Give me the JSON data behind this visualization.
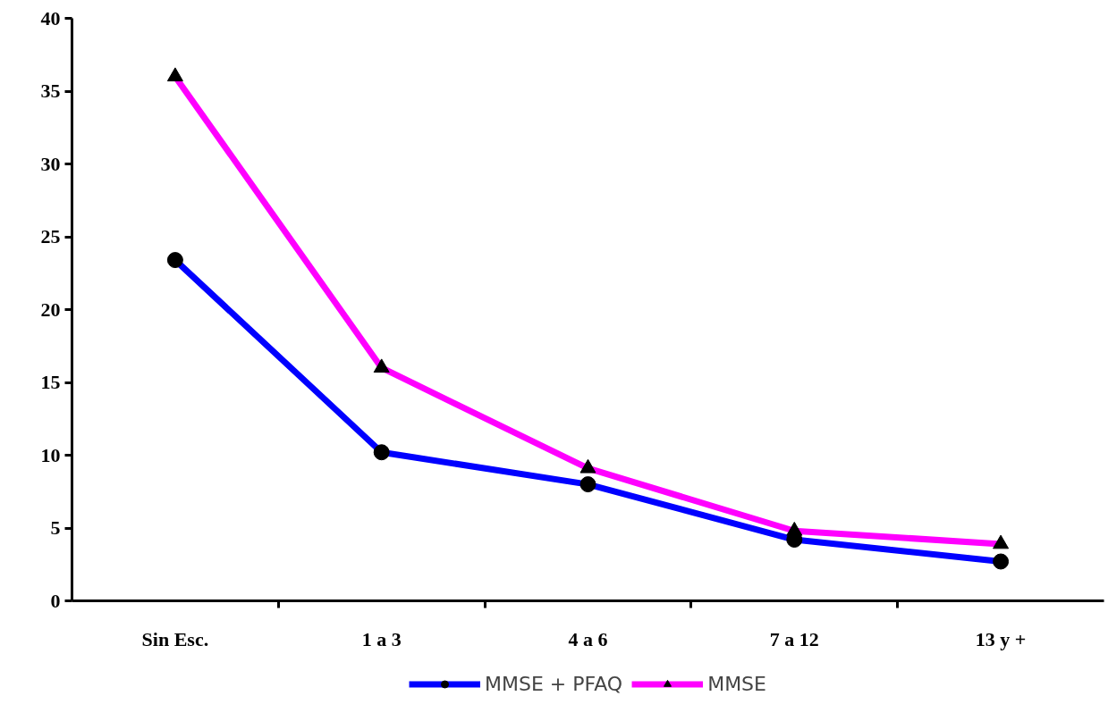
{
  "chart_data": {
    "type": "line",
    "categories": [
      "Sin Esc.",
      "1 a 3",
      "4 a 6",
      "7 a 12",
      "13 y +"
    ],
    "series": [
      {
        "name": "MMSE + PFAQ",
        "color": "#0000ff",
        "marker": "circle",
        "values": [
          23.4,
          10.2,
          8.0,
          4.2,
          2.7
        ]
      },
      {
        "name": "MMSE",
        "color": "#ff00ff",
        "marker": "triangle",
        "values": [
          36.0,
          16.0,
          9.1,
          4.8,
          3.9
        ]
      }
    ],
    "ylim": [
      0,
      40
    ],
    "yticks": [
      0,
      5,
      10,
      15,
      20,
      25,
      30,
      35,
      40
    ],
    "grid": false,
    "legend": "bottom",
    "line_style": "solid"
  }
}
